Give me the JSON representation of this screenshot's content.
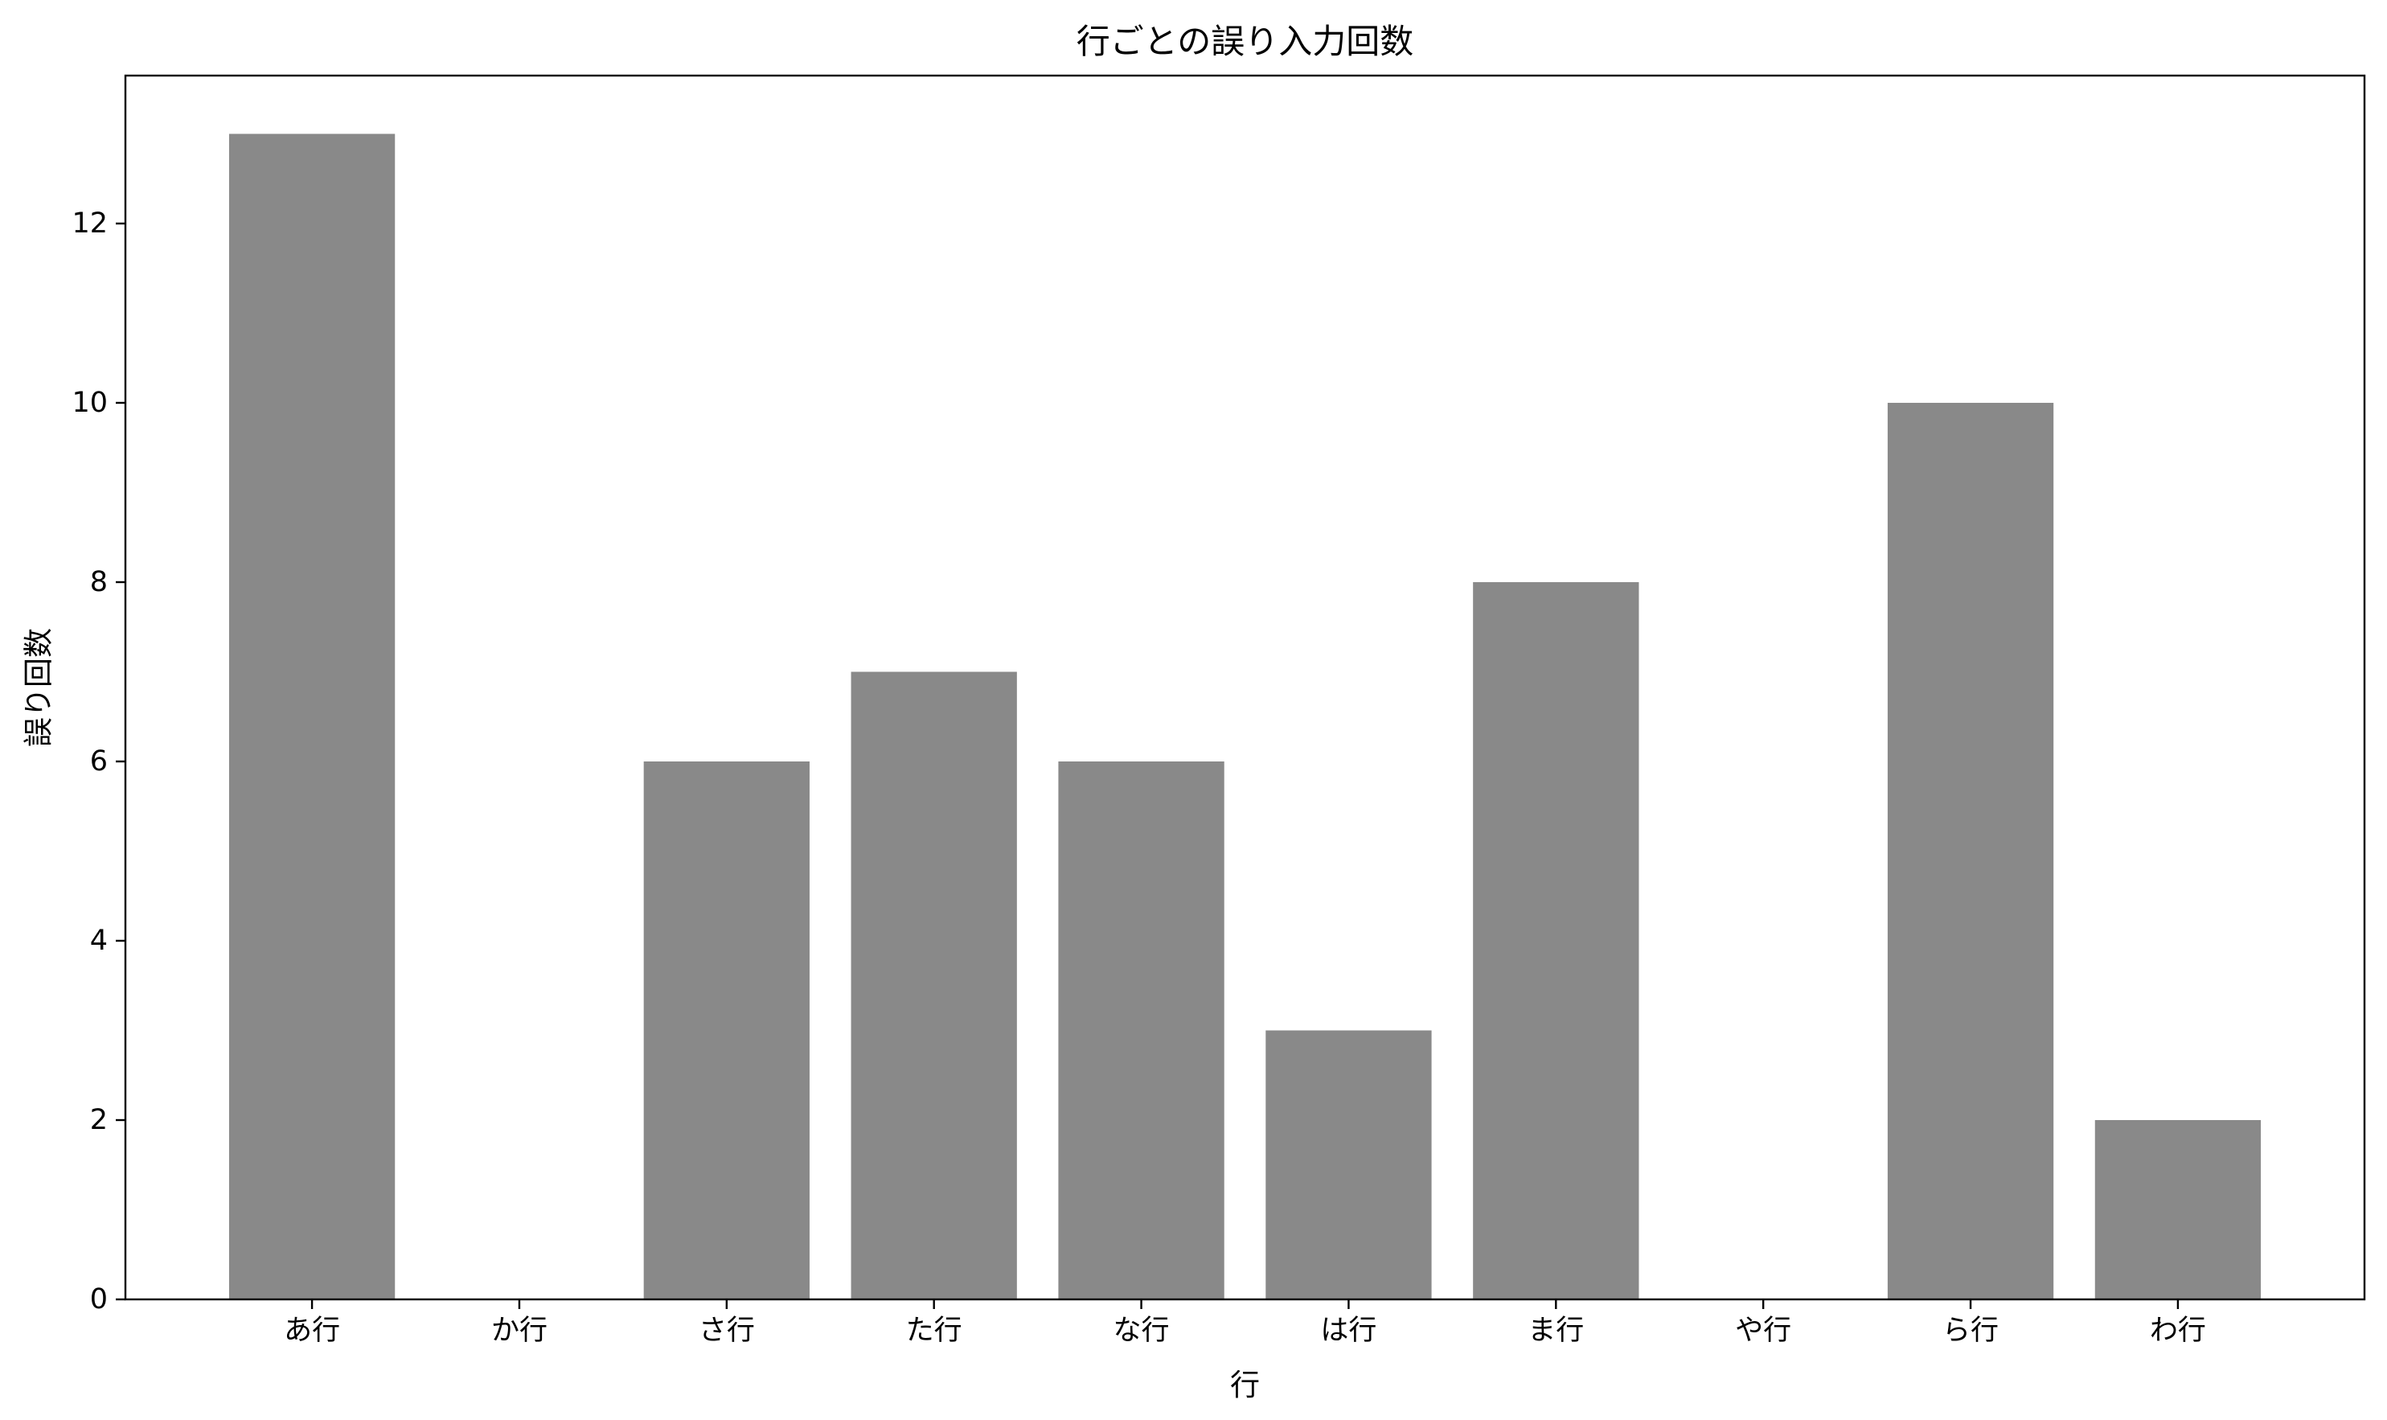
{
  "chart_data": {
    "type": "bar",
    "title": "行ごとの誤り入力回数",
    "xlabel": "行",
    "ylabel": "誤り回数",
    "categories": [
      "あ行",
      "か行",
      "さ行",
      "た行",
      "な行",
      "は行",
      "ま行",
      "や行",
      "ら行",
      "わ行"
    ],
    "values": [
      13,
      0,
      6,
      7,
      6,
      3,
      8,
      0,
      10,
      2
    ],
    "ylim": [
      0,
      13.65
    ],
    "yticks": [
      0,
      2,
      4,
      6,
      8,
      10,
      12
    ],
    "grid": false,
    "bar_color": "#898989"
  }
}
